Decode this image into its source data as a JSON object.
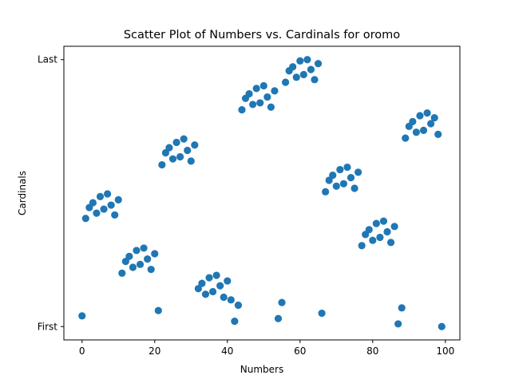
{
  "chart_data": {
    "type": "scatter",
    "title": "Scatter Plot of Numbers vs. Cardinals for oromo",
    "xlabel": "Numbers",
    "ylabel": "Cardinals",
    "xlim": [
      -5,
      104
    ],
    "ylim": [
      -0.05,
      1.05
    ],
    "xticks": [
      0,
      20,
      40,
      60,
      80,
      100
    ],
    "yticks": [
      {
        "value": 0,
        "label": "First"
      },
      {
        "value": 1,
        "label": "Last"
      }
    ],
    "grid": false,
    "color": "#1f77b4",
    "points": [
      [
        0,
        0.04
      ],
      [
        1,
        0.405
      ],
      [
        2,
        0.446
      ],
      [
        3,
        0.464
      ],
      [
        4,
        0.425
      ],
      [
        5,
        0.487
      ],
      [
        6,
        0.44
      ],
      [
        7,
        0.497
      ],
      [
        8,
        0.455
      ],
      [
        9,
        0.418
      ],
      [
        10,
        0.475
      ],
      [
        11,
        0.2
      ],
      [
        12,
        0.244
      ],
      [
        13,
        0.263
      ],
      [
        14,
        0.222
      ],
      [
        15,
        0.285
      ],
      [
        16,
        0.233
      ],
      [
        17,
        0.294
      ],
      [
        18,
        0.253
      ],
      [
        19,
        0.214
      ],
      [
        20,
        0.273
      ],
      [
        21,
        0.06
      ],
      [
        22,
        0.606
      ],
      [
        23,
        0.651
      ],
      [
        24,
        0.67
      ],
      [
        25,
        0.628
      ],
      [
        26,
        0.69
      ],
      [
        27,
        0.636
      ],
      [
        28,
        0.703
      ],
      [
        29,
        0.66
      ],
      [
        30,
        0.62
      ],
      [
        31,
        0.68
      ],
      [
        32,
        0.142
      ],
      [
        33,
        0.162
      ],
      [
        34,
        0.121
      ],
      [
        35,
        0.183
      ],
      [
        36,
        0.131
      ],
      [
        37,
        0.192
      ],
      [
        38,
        0.153
      ],
      [
        39,
        0.11
      ],
      [
        40,
        0.171
      ],
      [
        41,
        0.1
      ],
      [
        42,
        0.02
      ],
      [
        43,
        0.08
      ],
      [
        44,
        0.812
      ],
      [
        45,
        0.855
      ],
      [
        46,
        0.872
      ],
      [
        47,
        0.832
      ],
      [
        48,
        0.892
      ],
      [
        49,
        0.838
      ],
      [
        50,
        0.902
      ],
      [
        51,
        0.86
      ],
      [
        52,
        0.822
      ],
      [
        53,
        0.883
      ],
      [
        54,
        0.03
      ],
      [
        55,
        0.09
      ],
      [
        56,
        0.915
      ],
      [
        57,
        0.958
      ],
      [
        58,
        0.973
      ],
      [
        59,
        0.934
      ],
      [
        60,
        0.995
      ],
      [
        61,
        0.944
      ],
      [
        62,
        1.0
      ],
      [
        63,
        0.963
      ],
      [
        64,
        0.925
      ],
      [
        65,
        0.985
      ],
      [
        66,
        0.05
      ],
      [
        67,
        0.505
      ],
      [
        68,
        0.548
      ],
      [
        69,
        0.567
      ],
      [
        70,
        0.526
      ],
      [
        71,
        0.588
      ],
      [
        72,
        0.535
      ],
      [
        73,
        0.597
      ],
      [
        74,
        0.558
      ],
      [
        75,
        0.518
      ],
      [
        76,
        0.578
      ],
      [
        77,
        0.303
      ],
      [
        78,
        0.345
      ],
      [
        79,
        0.363
      ],
      [
        80,
        0.323
      ],
      [
        81,
        0.386
      ],
      [
        82,
        0.334
      ],
      [
        83,
        0.395
      ],
      [
        84,
        0.355
      ],
      [
        85,
        0.315
      ],
      [
        86,
        0.375
      ],
      [
        87,
        0.01
      ],
      [
        88,
        0.07
      ],
      [
        89,
        0.706
      ],
      [
        90,
        0.75
      ],
      [
        91,
        0.768
      ],
      [
        92,
        0.728
      ],
      [
        93,
        0.79
      ],
      [
        94,
        0.735
      ],
      [
        95,
        0.8
      ],
      [
        96,
        0.76
      ],
      [
        97,
        0.782
      ],
      [
        98,
        0.72
      ],
      [
        99,
        0.0
      ]
    ]
  }
}
